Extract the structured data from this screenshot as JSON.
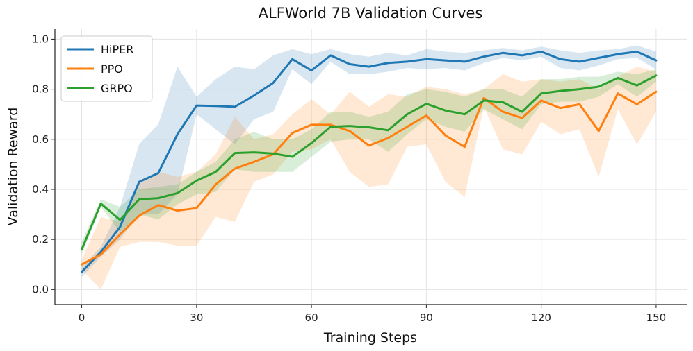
{
  "chart_data": {
    "type": "line",
    "title": "ALFWorld 7B Validation Curves",
    "xlabel": "Training Steps",
    "ylabel": "Validation Reward",
    "xlim": [
      -7,
      158
    ],
    "ylim": [
      -0.06,
      1.04
    ],
    "xticks": [
      0,
      30,
      60,
      90,
      120,
      150
    ],
    "yticks": [
      0.0,
      0.2,
      0.4,
      0.6,
      0.8,
      1.0
    ],
    "ytick_labels": [
      "0.0",
      "0.2",
      "0.4",
      "0.6",
      "0.8",
      "1.0"
    ],
    "grid": true,
    "legend_position": "top-left",
    "x": [
      0,
      5,
      10,
      15,
      20,
      25,
      30,
      35,
      40,
      45,
      50,
      55,
      60,
      65,
      70,
      75,
      80,
      85,
      90,
      95,
      100,
      105,
      110,
      115,
      120,
      125,
      130,
      135,
      140,
      145,
      150
    ],
    "series": [
      {
        "name": "HiPER",
        "color": "#1f77b4",
        "values": [
          0.07,
          0.15,
          0.25,
          0.43,
          0.465,
          0.62,
          0.735,
          0.733,
          0.73,
          0.775,
          0.825,
          0.92,
          0.875,
          0.935,
          0.9,
          0.89,
          0.905,
          0.91,
          0.92,
          0.915,
          0.91,
          0.93,
          0.945,
          0.935,
          0.95,
          0.92,
          0.91,
          0.925,
          0.94,
          0.95,
          0.915
        ],
        "upper": [
          0.09,
          0.17,
          0.33,
          0.58,
          0.66,
          0.89,
          0.77,
          0.84,
          0.89,
          0.88,
          0.935,
          0.96,
          0.94,
          0.96,
          0.94,
          0.93,
          0.945,
          0.935,
          0.96,
          0.95,
          0.945,
          0.955,
          0.965,
          0.955,
          0.97,
          0.955,
          0.945,
          0.955,
          0.96,
          0.975,
          0.95
        ],
        "lower": [
          0.05,
          0.13,
          0.2,
          0.3,
          0.3,
          0.38,
          0.7,
          0.64,
          0.58,
          0.68,
          0.71,
          0.88,
          0.82,
          0.91,
          0.86,
          0.86,
          0.87,
          0.885,
          0.88,
          0.885,
          0.875,
          0.905,
          0.925,
          0.915,
          0.93,
          0.885,
          0.875,
          0.895,
          0.92,
          0.925,
          0.88
        ]
      },
      {
        "name": "PPO",
        "color": "#ff7f0e",
        "values": [
          0.1,
          0.14,
          0.22,
          0.295,
          0.337,
          0.315,
          0.325,
          0.42,
          0.483,
          0.51,
          0.54,
          0.625,
          0.658,
          0.658,
          0.633,
          0.575,
          0.605,
          0.65,
          0.695,
          0.615,
          0.57,
          0.765,
          0.71,
          0.685,
          0.755,
          0.725,
          0.74,
          0.633,
          0.783,
          0.74,
          0.79
        ],
        "upper": [
          0.12,
          0.29,
          0.27,
          0.43,
          0.47,
          0.45,
          0.47,
          0.54,
          0.69,
          0.6,
          0.62,
          0.7,
          0.76,
          0.7,
          0.79,
          0.73,
          0.78,
          0.77,
          0.81,
          0.8,
          0.78,
          0.8,
          0.86,
          0.83,
          0.84,
          0.83,
          0.84,
          0.8,
          0.85,
          0.89,
          0.87
        ],
        "lower": [
          0.08,
          0.0,
          0.17,
          0.19,
          0.19,
          0.175,
          0.175,
          0.29,
          0.27,
          0.43,
          0.46,
          0.55,
          0.56,
          0.6,
          0.47,
          0.41,
          0.42,
          0.57,
          0.58,
          0.43,
          0.37,
          0.73,
          0.56,
          0.54,
          0.67,
          0.62,
          0.64,
          0.45,
          0.72,
          0.58,
          0.71
        ]
      },
      {
        "name": "GRPO",
        "color": "#2ca02c",
        "values": [
          0.16,
          0.343,
          0.278,
          0.36,
          0.365,
          0.385,
          0.435,
          0.47,
          0.545,
          0.548,
          0.543,
          0.53,
          0.585,
          0.65,
          0.653,
          0.648,
          0.636,
          0.7,
          0.742,
          0.715,
          0.7,
          0.755,
          0.748,
          0.71,
          0.783,
          0.793,
          0.8,
          0.81,
          0.845,
          0.815,
          0.855
        ],
        "upper": [
          0.19,
          0.36,
          0.33,
          0.4,
          0.41,
          0.42,
          0.47,
          0.51,
          0.6,
          0.63,
          0.6,
          0.6,
          0.64,
          0.71,
          0.71,
          0.69,
          0.71,
          0.78,
          0.8,
          0.79,
          0.77,
          0.8,
          0.8,
          0.77,
          0.84,
          0.84,
          0.85,
          0.85,
          0.87,
          0.86,
          0.88
        ],
        "lower": [
          0.14,
          0.33,
          0.23,
          0.3,
          0.28,
          0.34,
          0.38,
          0.39,
          0.48,
          0.47,
          0.47,
          0.47,
          0.53,
          0.59,
          0.6,
          0.6,
          0.55,
          0.62,
          0.68,
          0.65,
          0.63,
          0.72,
          0.68,
          0.64,
          0.74,
          0.75,
          0.75,
          0.77,
          0.82,
          0.77,
          0.83
        ]
      }
    ]
  }
}
